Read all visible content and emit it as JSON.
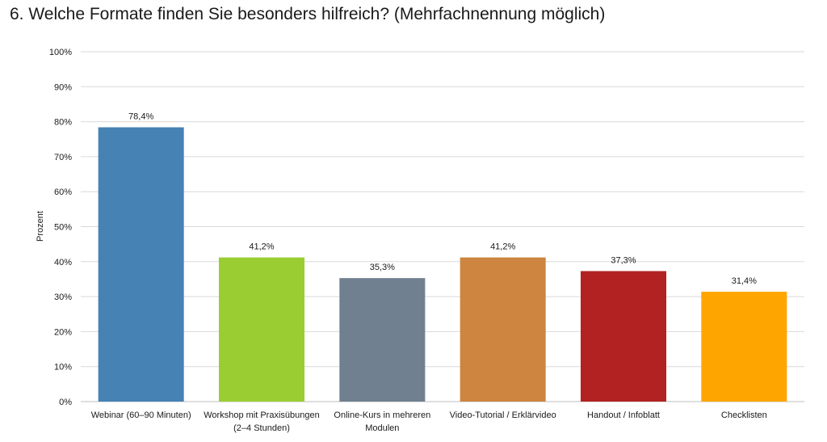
{
  "chart_data": {
    "type": "bar",
    "title": "6. Welche Formate finden Sie besonders hilfreich? (Mehrfachnennung möglich)",
    "ylabel": "Prozent",
    "xlabel": "",
    "ylim": [
      0,
      100
    ],
    "y_ticks": [
      0,
      10,
      20,
      30,
      40,
      50,
      60,
      70,
      80,
      90,
      100
    ],
    "y_tick_labels": [
      "0%",
      "10%",
      "20%",
      "30%",
      "40%",
      "50%",
      "60%",
      "70%",
      "80%",
      "90%",
      "100%"
    ],
    "grid": true,
    "categories": [
      [
        "Webinar (60–90 Minuten)"
      ],
      [
        "Workshop mit Praxisübungen",
        "(2–4 Stunden)"
      ],
      [
        "Online-Kurs in mehreren",
        "Modulen"
      ],
      [
        "Video-Tutorial / Erklärvideo"
      ],
      [
        "Handout / Infoblatt"
      ],
      [
        "Checklisten"
      ]
    ],
    "values": [
      78.4,
      41.2,
      35.3,
      41.2,
      37.3,
      31.4
    ],
    "data_labels": [
      "78,4%",
      "41,2%",
      "35,3%",
      "41,2%",
      "37,3%",
      "31,4%"
    ],
    "colors": [
      "#4682b4",
      "#9acd32",
      "#708090",
      "#cd853f",
      "#b22222",
      "#ffa500"
    ]
  }
}
